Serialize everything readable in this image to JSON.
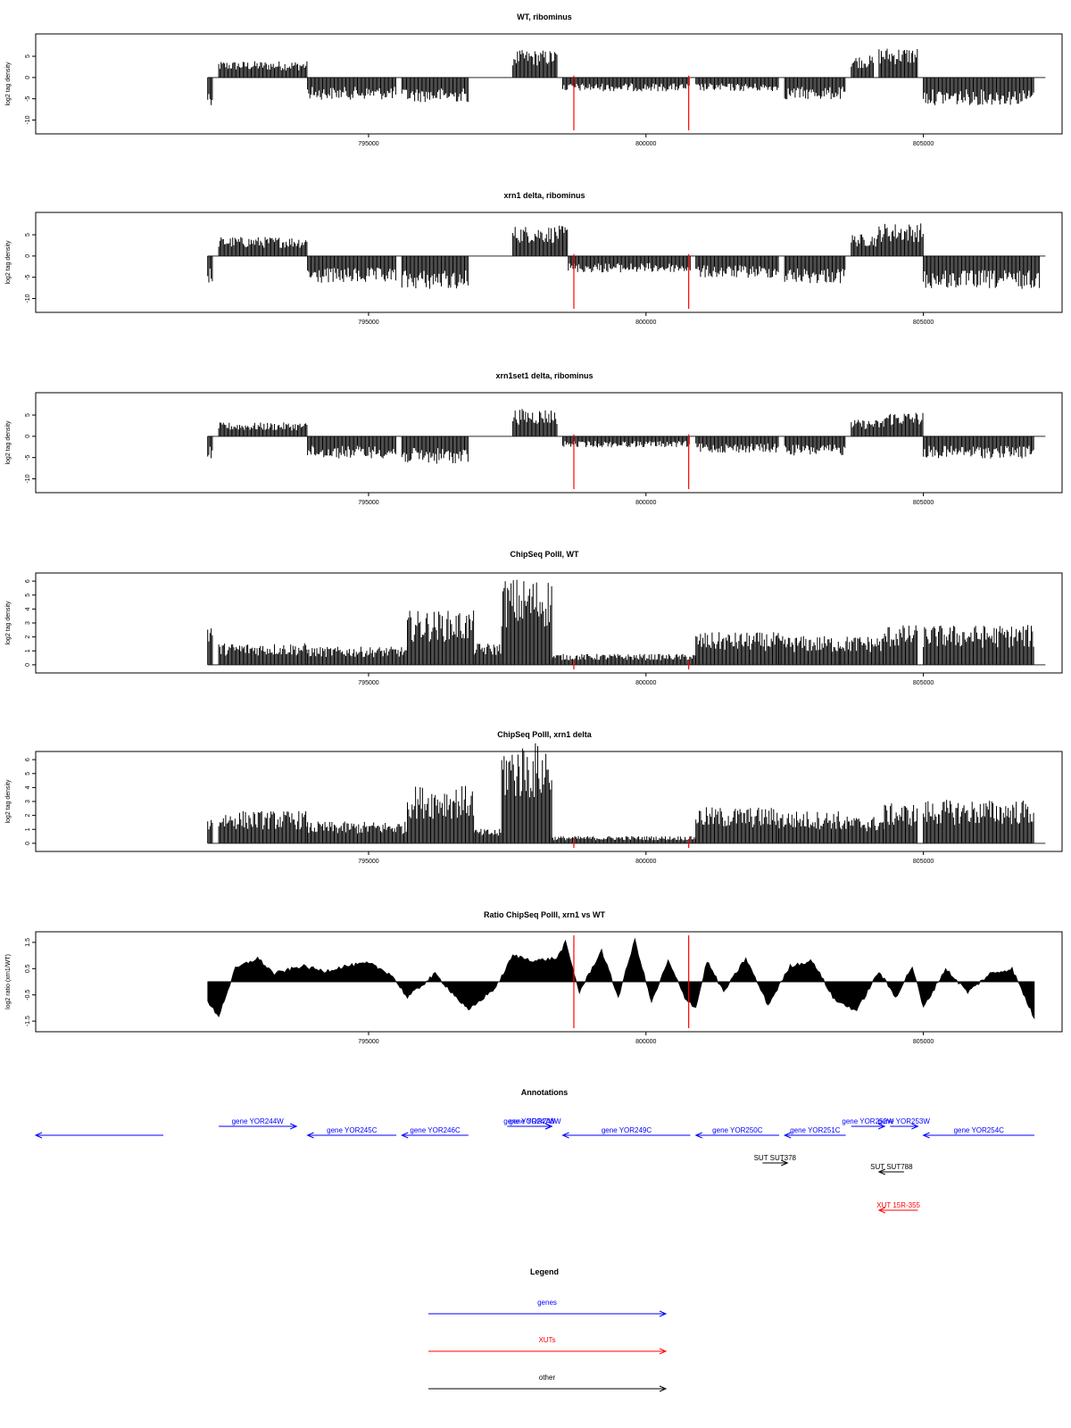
{
  "chart_data": [
    {
      "type": "bar",
      "title": "WT, ribominus",
      "ylabel": "log2 tag density",
      "xlim": [
        789000,
        807500
      ],
      "ylim": [
        -12,
        9
      ],
      "yticks": [
        "-10",
        "-5",
        "0",
        "5"
      ],
      "xticks": [
        "795000",
        "800000",
        "805000"
      ],
      "markers": [
        798700,
        800770
      ],
      "segments": [
        {
          "from": 792100,
          "to": 792200,
          "value": -5
        },
        {
          "from": 792300,
          "to": 793900,
          "value": 3
        },
        {
          "from": 793900,
          "to": 795500,
          "value": -4
        },
        {
          "from": 795600,
          "to": 796800,
          "value": -4.5
        },
        {
          "from": 797600,
          "to": 798400,
          "value": 5
        },
        {
          "from": 798500,
          "to": 800800,
          "value": -2.5
        },
        {
          "from": 800900,
          "to": 802400,
          "value": -2.5
        },
        {
          "from": 802500,
          "to": 803600,
          "value": -4
        },
        {
          "from": 803700,
          "to": 804100,
          "value": 4
        },
        {
          "from": 804200,
          "to": 804900,
          "value": 5.5
        },
        {
          "from": 805000,
          "to": 807000,
          "value": -5
        }
      ]
    },
    {
      "type": "bar",
      "title": "xrn1 delta, ribominus",
      "ylabel": "log2 tag density",
      "xlim": [
        789000,
        807500
      ],
      "ylim": [
        -12,
        9
      ],
      "yticks": [
        "-10",
        "-5",
        "0",
        "5"
      ],
      "xticks": [
        "795000",
        "800000",
        "805000"
      ],
      "markers": [
        798700,
        800770
      ],
      "segments": [
        {
          "from": 792100,
          "to": 792200,
          "value": -5
        },
        {
          "from": 792300,
          "to": 793900,
          "value": 3.5
        },
        {
          "from": 793900,
          "to": 795500,
          "value": -5
        },
        {
          "from": 795600,
          "to": 796800,
          "value": -6
        },
        {
          "from": 797600,
          "to": 798600,
          "value": 5.5
        },
        {
          "from": 798600,
          "to": 800800,
          "value": -3
        },
        {
          "from": 800900,
          "to": 802400,
          "value": -4
        },
        {
          "from": 802500,
          "to": 803600,
          "value": -5
        },
        {
          "from": 803700,
          "to": 804200,
          "value": 4
        },
        {
          "from": 804200,
          "to": 805000,
          "value": 6
        },
        {
          "from": 805000,
          "to": 807100,
          "value": -6
        }
      ]
    },
    {
      "type": "bar",
      "title": "xrn1set1 delta, ribominus",
      "ylabel": "log2 tag density",
      "xlim": [
        789000,
        807500
      ],
      "ylim": [
        -12,
        9
      ],
      "yticks": [
        "-10",
        "-5",
        "0",
        "5"
      ],
      "xticks": [
        "795000",
        "800000",
        "805000"
      ],
      "markers": [
        798700,
        800770
      ],
      "segments": [
        {
          "from": 792100,
          "to": 792200,
          "value": -4
        },
        {
          "from": 792300,
          "to": 793900,
          "value": 2.5
        },
        {
          "from": 793900,
          "to": 795500,
          "value": -4
        },
        {
          "from": 795600,
          "to": 796800,
          "value": -5
        },
        {
          "from": 797600,
          "to": 798400,
          "value": 5
        },
        {
          "from": 798500,
          "to": 800800,
          "value": -2
        },
        {
          "from": 800900,
          "to": 802400,
          "value": -3
        },
        {
          "from": 802500,
          "to": 803600,
          "value": -3.5
        },
        {
          "from": 803700,
          "to": 804300,
          "value": 3
        },
        {
          "from": 804300,
          "to": 805000,
          "value": 4.5
        },
        {
          "from": 805000,
          "to": 807000,
          "value": -4
        }
      ]
    },
    {
      "type": "bar",
      "title": "ChipSeq PolII, WT",
      "ylabel": "log2 tag density",
      "xlim": [
        789000,
        807500
      ],
      "ylim": [
        -0.2,
        6.2
      ],
      "yticks": [
        "0",
        "1",
        "2",
        "3",
        "4",
        "5",
        "6"
      ],
      "xticks": [
        "795000",
        "800000",
        "805000"
      ],
      "markers": [
        798700,
        800770
      ],
      "segments": [
        {
          "from": 792100,
          "to": 792200,
          "value": 2.5
        },
        {
          "from": 792300,
          "to": 793900,
          "value": 1.2
        },
        {
          "from": 793900,
          "to": 795700,
          "value": 1
        },
        {
          "from": 795700,
          "to": 796900,
          "value": 3
        },
        {
          "from": 796900,
          "to": 797400,
          "value": 1.2
        },
        {
          "from": 797400,
          "to": 798300,
          "value": 4.8
        },
        {
          "from": 798300,
          "to": 800900,
          "value": 0.6
        },
        {
          "from": 800900,
          "to": 802400,
          "value": 1.8
        },
        {
          "from": 802400,
          "to": 803500,
          "value": 1.6
        },
        {
          "from": 803500,
          "to": 804300,
          "value": 1.6
        },
        {
          "from": 804300,
          "to": 804900,
          "value": 2.2
        },
        {
          "from": 805000,
          "to": 807000,
          "value": 2.2
        }
      ]
    },
    {
      "type": "bar",
      "title": "ChipSeq PolII, xrn1 delta",
      "ylabel": "log2 tag density",
      "xlim": [
        789000,
        807500
      ],
      "ylim": [
        -0.2,
        6.2
      ],
      "yticks": [
        "0",
        "1",
        "2",
        "3",
        "4",
        "5",
        "6"
      ],
      "xticks": [
        "795000",
        "800000",
        "805000"
      ],
      "markers": [
        798700,
        800770
      ],
      "segments": [
        {
          "from": 792100,
          "to": 792200,
          "value": 1.5
        },
        {
          "from": 792300,
          "to": 793900,
          "value": 1.8
        },
        {
          "from": 793900,
          "to": 795700,
          "value": 1.2
        },
        {
          "from": 795700,
          "to": 796900,
          "value": 3.2
        },
        {
          "from": 796900,
          "to": 797400,
          "value": 0.8
        },
        {
          "from": 797400,
          "to": 798300,
          "value": 5.6
        },
        {
          "from": 798300,
          "to": 800900,
          "value": 0.4
        },
        {
          "from": 800900,
          "to": 802400,
          "value": 2
        },
        {
          "from": 802400,
          "to": 803500,
          "value": 1.8
        },
        {
          "from": 803500,
          "to": 804300,
          "value": 1.5
        },
        {
          "from": 804300,
          "to": 804900,
          "value": 2.2
        },
        {
          "from": 805000,
          "to": 807000,
          "value": 2.4
        }
      ]
    },
    {
      "type": "area",
      "title": "Ratio ChipSeq PolII, xrn1 vs WT",
      "ylabel": "log2 ratio (xrn1/WT)",
      "xlim": [
        789000,
        807500
      ],
      "ylim": [
        -1.7,
        1.7
      ],
      "yticks": [
        "-1.5",
        "-0.5",
        "0.5",
        "1.5"
      ],
      "xticks": [
        "795000",
        "800000",
        "805000"
      ],
      "markers": [
        798700,
        800770
      ],
      "x": [
        792100,
        792300,
        792600,
        793000,
        793300,
        793800,
        794200,
        794600,
        795000,
        795400,
        795700,
        796200,
        796800,
        797300,
        797600,
        798000,
        798400,
        798550,
        798800,
        799200,
        799500,
        799800,
        800100,
        800400,
        800700,
        800900,
        801100,
        801400,
        801800,
        802200,
        802600,
        803000,
        803400,
        803800,
        804200,
        804500,
        804800,
        805000,
        805400,
        805800,
        806200,
        806600,
        807000
      ],
      "values": [
        -0.8,
        -1.3,
        0.5,
        0.9,
        0.3,
        0.6,
        0.4,
        0.6,
        0.7,
        0.3,
        -0.6,
        0.3,
        -1.1,
        -0.2,
        1.0,
        0.8,
        0.9,
        1.5,
        -0.4,
        1.2,
        -0.6,
        1.6,
        -0.8,
        0.8,
        -0.6,
        -1.0,
        0.8,
        -0.4,
        0.9,
        -0.9,
        0.6,
        0.8,
        -0.7,
        -1.1,
        0.4,
        -0.6,
        0.6,
        -1.0,
        0.5,
        -0.4,
        0.3,
        0.5,
        -1.4
      ]
    }
  ],
  "annotations": {
    "title": "Annotations",
    "features": [
      {
        "label": "",
        "start": 789000,
        "end": 791300,
        "strand": "-",
        "type": "gene",
        "row": 0,
        "offset": 0
      },
      {
        "label": "gene YOR244W",
        "start": 792300,
        "end": 793700,
        "strand": "+",
        "type": "gene",
        "row": 0,
        "offset": -1
      },
      {
        "label": "gene YOR245C",
        "start": 793900,
        "end": 795500,
        "strand": "-",
        "type": "gene",
        "row": 0,
        "offset": 0
      },
      {
        "label": "gene YOR246C",
        "start": 795600,
        "end": 796800,
        "strand": "-",
        "type": "gene",
        "row": 0,
        "offset": 0
      },
      {
        "label": "gene YOR247W",
        "start": 797500,
        "end": 798300,
        "strand": "+",
        "type": "gene",
        "row": 0,
        "offset": -1
      },
      {
        "label": "gene YOR248W",
        "start": 797700,
        "end": 798300,
        "strand": "+",
        "type": "gene",
        "row": 0,
        "offset": -1
      },
      {
        "label": "gene YOR249C",
        "start": 798500,
        "end": 800800,
        "strand": "-",
        "type": "gene",
        "row": 0,
        "offset": 0
      },
      {
        "label": "gene YOR250C",
        "start": 800900,
        "end": 802400,
        "strand": "-",
        "type": "gene",
        "row": 0,
        "offset": 0
      },
      {
        "label": "gene YOR251C",
        "start": 802500,
        "end": 803600,
        "strand": "-",
        "type": "gene",
        "row": 0,
        "offset": 0
      },
      {
        "label": "gene YOR252W",
        "start": 803700,
        "end": 804300,
        "strand": "+",
        "type": "gene",
        "row": 0,
        "offset": -1
      },
      {
        "label": "gene YOR253W",
        "start": 804400,
        "end": 804900,
        "strand": "+",
        "type": "gene",
        "row": 0,
        "offset": -1
      },
      {
        "label": "gene YOR254C",
        "start": 805000,
        "end": 807000,
        "strand": "-",
        "type": "gene",
        "row": 0,
        "offset": 0
      },
      {
        "label": "SUT SUT378",
        "start": 802100,
        "end": 802550,
        "strand": "+",
        "type": "other",
        "row": 1,
        "offset": 0
      },
      {
        "label": "SUT SUT788",
        "start": 804200,
        "end": 804650,
        "strand": "-",
        "type": "other",
        "row": 2,
        "offset": 0
      },
      {
        "label": "XUT 15R-355",
        "start": 804200,
        "end": 804900,
        "strand": "-",
        "type": "xut",
        "row": 3,
        "offset": 0
      }
    ]
  },
  "legend": {
    "title": "Legend",
    "items": [
      {
        "label": "genes",
        "color": "#0000ff"
      },
      {
        "label": "XUTs",
        "color": "#ff0000"
      },
      {
        "label": "other",
        "color": "#000000"
      }
    ]
  },
  "colors": {
    "bars": "#000000",
    "marker": "#ff0000",
    "gene": "#0000ff",
    "xut": "#ff0000",
    "other": "#000000",
    "axis": "#000000"
  }
}
